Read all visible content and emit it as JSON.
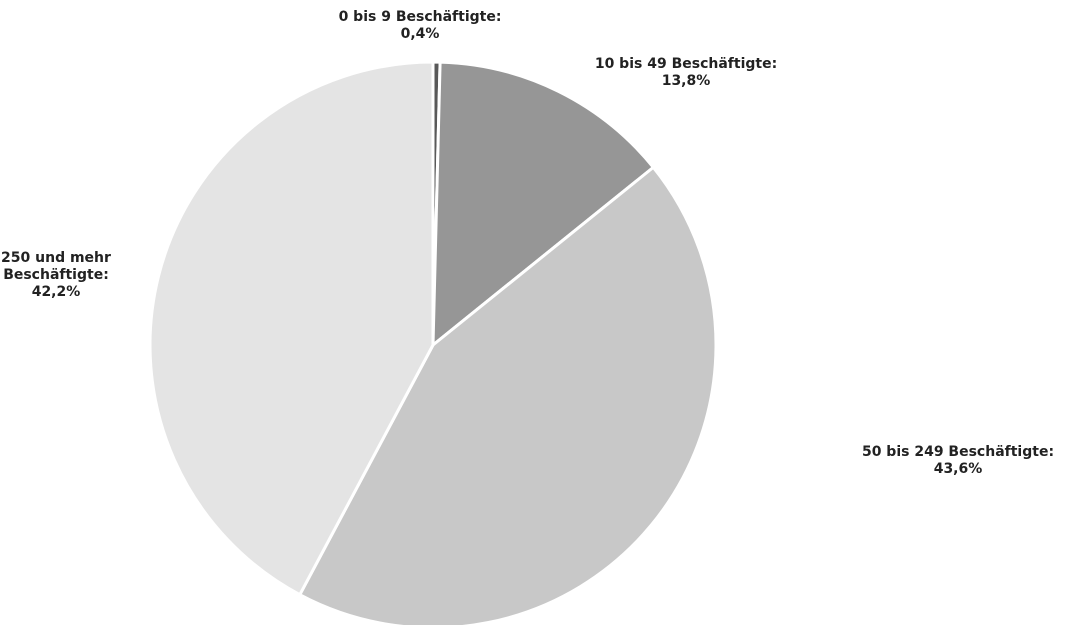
{
  "chart_data": {
    "type": "pie",
    "title": "",
    "start_angle_deg": 0,
    "direction": "clockwise",
    "slices": [
      {
        "name_lines": [
          "0 bis 9 Beschäftigte:"
        ],
        "value_text": "0,4%",
        "value": 0.4,
        "color": "#595959"
      },
      {
        "name_lines": [
          "10 bis 49 Beschäftigte:"
        ],
        "value_text": "13,8%",
        "value": 13.8,
        "color": "#969696"
      },
      {
        "name_lines": [
          "50 bis 249 Beschäftigte:"
        ],
        "value_text": "43,6%",
        "value": 43.6,
        "color": "#c8c8c8"
      },
      {
        "name_lines": [
          "250 und mehr",
          "Beschäftigte:"
        ],
        "value_text": "42,2%",
        "value": 42.2,
        "color": "#e4e4e4"
      }
    ]
  }
}
